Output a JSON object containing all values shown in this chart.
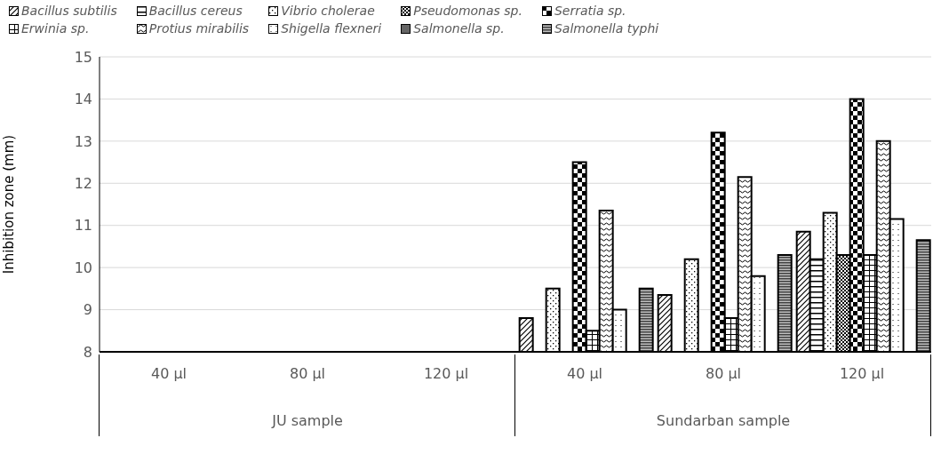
{
  "chart_data": {
    "type": "bar",
    "ylabel": "Inhibition zone (mm)",
    "categories": [
      "40 µl",
      "80 µl",
      "120 µl",
      "40 µl",
      "80 µl",
      "120 µl"
    ],
    "annotations": [
      "JU sample",
      "Sundarban sample"
    ],
    "ylim": [
      8,
      15
    ],
    "yticks": [
      8,
      9,
      10,
      11,
      12,
      13,
      14,
      15
    ],
    "grid": "y",
    "legend": "top",
    "series": [
      {
        "name": "Bacillus subtilis",
        "color": "#000000",
        "values": [
          null,
          null,
          null,
          8.8,
          9.35,
          10.85
        ]
      },
      {
        "name": "Bacillus cereus",
        "color": "#000000",
        "values": [
          null,
          null,
          null,
          null,
          null,
          10.2
        ]
      },
      {
        "name": "Vibrio cholerae",
        "color": "#000000",
        "values": [
          null,
          null,
          null,
          9.5,
          10.2,
          11.3
        ]
      },
      {
        "name": "Pseudomonas sp.",
        "color": "#000000",
        "values": [
          null,
          null,
          null,
          null,
          null,
          10.3
        ]
      },
      {
        "name": "Serratia sp.",
        "color": "#000000",
        "values": [
          null,
          null,
          null,
          12.5,
          13.2,
          14
        ]
      },
      {
        "name": "Erwinia sp.",
        "color": "#000000",
        "values": [
          null,
          null,
          null,
          8.5,
          8.8,
          10.3
        ]
      },
      {
        "name": "Protius mirabilis",
        "color": "#000000",
        "values": [
          null,
          null,
          null,
          11.35,
          12.15,
          13
        ]
      },
      {
        "name": "Shigella flexneri",
        "color": "#000000",
        "values": [
          null,
          null,
          null,
          9,
          9.8,
          11.15
        ]
      },
      {
        "name": "Salmonella sp.",
        "color": "#000000",
        "values": [
          null,
          null,
          null,
          null,
          null,
          null
        ]
      },
      {
        "name": "Salmonella typhi",
        "color": "#000000",
        "values": [
          null,
          null,
          null,
          9.5,
          10.3,
          10.65
        ]
      }
    ]
  }
}
